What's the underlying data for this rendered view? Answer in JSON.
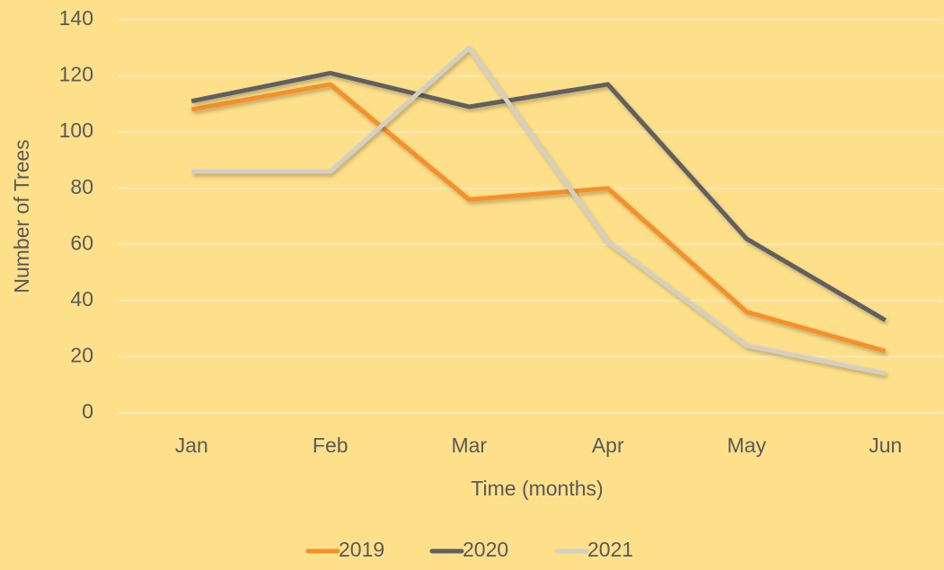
{
  "chart_data": {
    "type": "line",
    "x_label": "Time (months)",
    "y_label": "Number of Trees",
    "categories": [
      "Jan",
      "Feb",
      "Mar",
      "Apr",
      "May",
      "Jun"
    ],
    "series": [
      {
        "name": "2019",
        "color": "#F5902A",
        "values": [
          108,
          117,
          76,
          80,
          36,
          22
        ]
      },
      {
        "name": "2020",
        "color": "#5F6062",
        "values": [
          111,
          121,
          109,
          117,
          62,
          33
        ]
      },
      {
        "name": "2021",
        "color": "#D3CFC4",
        "values": [
          86,
          86,
          130,
          61,
          24,
          14
        ]
      }
    ],
    "ylim": [
      0,
      140
    ],
    "yticks": [
      0,
      20,
      40,
      60,
      80,
      100,
      120,
      140
    ],
    "grid": true,
    "legend": "bottom"
  }
}
